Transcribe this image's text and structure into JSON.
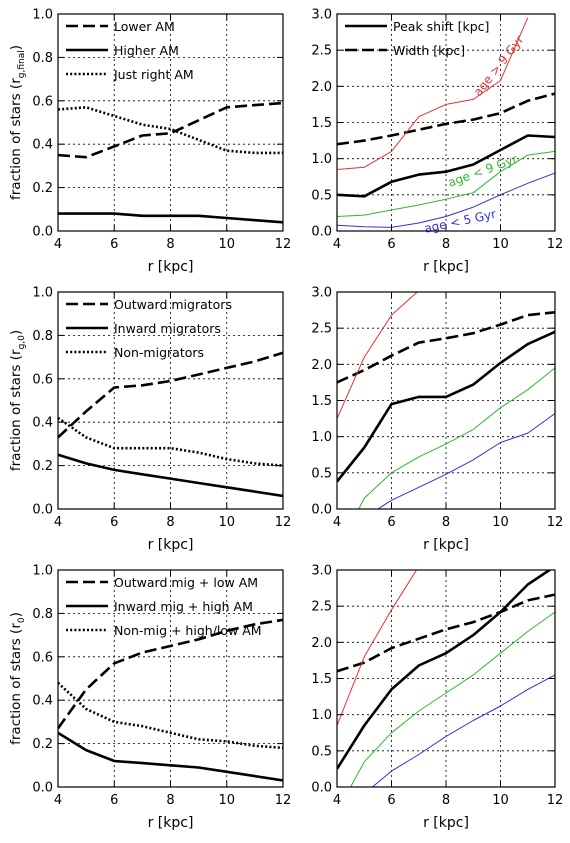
{
  "chart_data": [
    {
      "type": "line",
      "xlabel": "r [kpc]",
      "ylabel": "fraction of stars (r_g,final)",
      "ylabel_parts": [
        "fraction of stars (r",
        "g,final",
        ")"
      ],
      "xlim": [
        4,
        12
      ],
      "ylim": [
        0,
        1
      ],
      "xticks": [
        "4",
        "6",
        "8",
        "10",
        "12"
      ],
      "yticks": [
        "0.0",
        "0.2",
        "0.4",
        "0.6",
        "0.8",
        "1.0"
      ],
      "grid": true,
      "legend_position": "top-left",
      "series": [
        {
          "name": "Lower AM",
          "style": "dashed",
          "color": "#000000",
          "x": [
            4,
            5,
            6,
            7,
            8,
            9,
            10,
            11,
            12
          ],
          "y": [
            0.35,
            0.34,
            0.39,
            0.44,
            0.45,
            0.51,
            0.57,
            0.58,
            0.59
          ]
        },
        {
          "name": "Higher AM",
          "style": "solid",
          "color": "#000000",
          "x": [
            4,
            5,
            6,
            7,
            8,
            9,
            10,
            11,
            12
          ],
          "y": [
            0.08,
            0.08,
            0.08,
            0.07,
            0.07,
            0.07,
            0.06,
            0.05,
            0.04
          ]
        },
        {
          "name": "Just right AM",
          "style": "dotted",
          "color": "#000000",
          "x": [
            4,
            5,
            6,
            7,
            8,
            9,
            10,
            11,
            12
          ],
          "y": [
            0.56,
            0.57,
            0.53,
            0.49,
            0.47,
            0.42,
            0.37,
            0.36,
            0.36
          ]
        }
      ]
    },
    {
      "type": "line",
      "xlabel": "r [kpc]",
      "ylabel": "",
      "xlim": [
        4,
        12
      ],
      "ylim": [
        0,
        3
      ],
      "xticks": [
        "4",
        "6",
        "8",
        "10",
        "12"
      ],
      "yticks": [
        "0.0",
        "0.5",
        "1.0",
        "1.5",
        "2.0",
        "2.5",
        "3.0"
      ],
      "grid": true,
      "legend_position": "top-left",
      "series": [
        {
          "name": "Peak shift [kpc]",
          "style": "solid",
          "color": "#000000",
          "x": [
            4,
            5,
            6,
            7,
            8,
            9,
            10,
            11,
            12
          ],
          "y": [
            0.5,
            0.48,
            0.68,
            0.78,
            0.82,
            0.92,
            1.12,
            1.32,
            1.3
          ]
        },
        {
          "name": "Width [kpc]",
          "style": "dashed",
          "color": "#000000",
          "x": [
            4,
            5,
            6,
            7,
            8,
            9,
            10,
            11,
            12
          ],
          "y": [
            1.2,
            1.25,
            1.32,
            1.4,
            1.48,
            1.54,
            1.63,
            1.8,
            1.9
          ]
        },
        {
          "name": "age > 9 Gyr",
          "style": "thin",
          "color": "#e83030",
          "x": [
            4,
            5,
            6,
            7,
            8,
            9,
            10,
            11
          ],
          "y": [
            0.85,
            0.88,
            1.1,
            1.58,
            1.75,
            1.82,
            2.08,
            2.95
          ]
        },
        {
          "name": "age < 9 Gyr",
          "style": "thin",
          "color": "#30b830",
          "x": [
            4,
            5,
            6,
            7,
            8,
            9,
            10,
            11,
            12
          ],
          "y": [
            0.2,
            0.22,
            0.29,
            0.36,
            0.44,
            0.53,
            0.82,
            1.05,
            1.1
          ]
        },
        {
          "name": "age < 5 Gyr",
          "style": "thin",
          "color": "#3030e0",
          "x": [
            4,
            5,
            6,
            7,
            8,
            9,
            10,
            11,
            12
          ],
          "y": [
            0.08,
            0.06,
            0.05,
            0.11,
            0.2,
            0.33,
            0.5,
            0.66,
            0.8
          ]
        }
      ],
      "annotations": [
        {
          "text": "age > 9 Gyr",
          "color": "#e83030",
          "x": 10.05,
          "y": 2.25,
          "angle": -52
        },
        {
          "text": "age < 9 Gyr",
          "color": "#30b830",
          "x": 9.4,
          "y": 0.78,
          "angle": -20
        },
        {
          "text": "age < 5 Gyr",
          "color": "#3030e0",
          "x": 8.55,
          "y": 0.08,
          "angle": -12
        }
      ]
    },
    {
      "type": "line",
      "xlabel": "r [kpc]",
      "ylabel": "fraction of stars (r_g,0)",
      "ylabel_parts": [
        "fraction of stars (r",
        "g,0",
        ")"
      ],
      "xlim": [
        4,
        12
      ],
      "ylim": [
        0,
        1
      ],
      "xticks": [
        "4",
        "6",
        "8",
        "10",
        "12"
      ],
      "yticks": [
        "0.0",
        "0.2",
        "0.4",
        "0.6",
        "0.8",
        "1.0"
      ],
      "grid": true,
      "legend_position": "top-left",
      "series": [
        {
          "name": "Outward migrators",
          "style": "dashed",
          "color": "#000000",
          "x": [
            4,
            5,
            6,
            7,
            8,
            9,
            10,
            11,
            12
          ],
          "y": [
            0.33,
            0.45,
            0.56,
            0.57,
            0.59,
            0.62,
            0.65,
            0.68,
            0.72
          ]
        },
        {
          "name": "Inward migrators",
          "style": "solid",
          "color": "#000000",
          "x": [
            4,
            5,
            6,
            7,
            8,
            9,
            10,
            11,
            12
          ],
          "y": [
            0.25,
            0.21,
            0.18,
            0.16,
            0.14,
            0.12,
            0.1,
            0.08,
            0.06
          ]
        },
        {
          "name": "Non-migrators",
          "style": "dotted",
          "color": "#000000",
          "x": [
            4,
            5,
            6,
            7,
            8,
            9,
            10,
            11,
            12
          ],
          "y": [
            0.42,
            0.33,
            0.28,
            0.28,
            0.28,
            0.26,
            0.23,
            0.21,
            0.2
          ]
        }
      ]
    },
    {
      "type": "line",
      "xlabel": "r [kpc]",
      "ylabel": "",
      "xlim": [
        4,
        12
      ],
      "ylim": [
        0,
        3
      ],
      "xticks": [
        "4",
        "6",
        "8",
        "10",
        "12"
      ],
      "yticks": [
        "0.0",
        "0.5",
        "1.0",
        "1.5",
        "2.0",
        "2.5",
        "3.0"
      ],
      "grid": true,
      "series": [
        {
          "name": "",
          "style": "solid",
          "color": "#000000",
          "x": [
            4,
            5,
            6,
            7,
            8,
            9,
            10,
            11,
            12
          ],
          "y": [
            0.38,
            0.85,
            1.45,
            1.55,
            1.55,
            1.72,
            2.02,
            2.28,
            2.45
          ]
        },
        {
          "name": "",
          "style": "dashed",
          "color": "#000000",
          "x": [
            4,
            5,
            6,
            7,
            8,
            9,
            10,
            11,
            12
          ],
          "y": [
            1.75,
            1.92,
            2.12,
            2.3,
            2.36,
            2.43,
            2.55,
            2.68,
            2.72
          ]
        },
        {
          "name": "",
          "style": "thin",
          "color": "#e83030",
          "x": [
            4,
            5,
            6,
            7
          ],
          "y": [
            1.25,
            2.1,
            2.68,
            3.02
          ]
        },
        {
          "name": "",
          "style": "thin",
          "color": "#30b830",
          "x": [
            4.8,
            5,
            6,
            7,
            8,
            9,
            10,
            11,
            12
          ],
          "y": [
            0.0,
            0.15,
            0.5,
            0.72,
            0.9,
            1.1,
            1.4,
            1.65,
            1.95
          ]
        },
        {
          "name": "",
          "style": "thin",
          "color": "#3030e0",
          "x": [
            5.5,
            6,
            7,
            8,
            9,
            10,
            11,
            12
          ],
          "y": [
            0.0,
            0.12,
            0.3,
            0.48,
            0.68,
            0.92,
            1.05,
            1.32
          ]
        }
      ]
    },
    {
      "type": "line",
      "xlabel": "r [kpc]",
      "ylabel": "fraction of stars (r_0)",
      "ylabel_parts": [
        "fraction of stars (r",
        "0",
        ")"
      ],
      "xlim": [
        4,
        12
      ],
      "ylim": [
        0,
        1
      ],
      "xticks": [
        "4",
        "6",
        "8",
        "10",
        "12"
      ],
      "yticks": [
        "0.0",
        "0.2",
        "0.4",
        "0.6",
        "0.8",
        "1.0"
      ],
      "grid": true,
      "legend_position": "top-left",
      "series": [
        {
          "name": "Outward mig + low AM",
          "style": "dashed",
          "color": "#000000",
          "x": [
            4,
            5,
            6,
            7,
            8,
            9,
            10,
            11,
            12
          ],
          "y": [
            0.27,
            0.45,
            0.57,
            0.62,
            0.65,
            0.68,
            0.72,
            0.75,
            0.77
          ]
        },
        {
          "name": "Inward mig + high AM",
          "style": "solid",
          "color": "#000000",
          "x": [
            4,
            5,
            6,
            7,
            8,
            9,
            10,
            11,
            12
          ],
          "y": [
            0.25,
            0.17,
            0.12,
            0.11,
            0.1,
            0.09,
            0.07,
            0.05,
            0.03
          ]
        },
        {
          "name": "Non-mig + high/low AM",
          "style": "dotted",
          "color": "#000000",
          "x": [
            4,
            5,
            6,
            7,
            8,
            9,
            10,
            11,
            12
          ],
          "y": [
            0.48,
            0.36,
            0.3,
            0.28,
            0.25,
            0.22,
            0.21,
            0.19,
            0.18
          ]
        }
      ]
    },
    {
      "type": "line",
      "xlabel": "r [kpc]",
      "ylabel": "",
      "xlim": [
        4,
        12
      ],
      "ylim": [
        0,
        3
      ],
      "xticks": [
        "4",
        "6",
        "8",
        "10",
        "12"
      ],
      "yticks": [
        "0.0",
        "0.5",
        "1.0",
        "1.5",
        "2.0",
        "2.5",
        "3.0"
      ],
      "grid": true,
      "series": [
        {
          "name": "",
          "style": "solid",
          "color": "#000000",
          "x": [
            4,
            5,
            6,
            7,
            8,
            9,
            10,
            11,
            12
          ],
          "y": [
            0.25,
            0.85,
            1.35,
            1.68,
            1.85,
            2.1,
            2.42,
            2.8,
            3.05
          ]
        },
        {
          "name": "",
          "style": "dashed",
          "color": "#000000",
          "x": [
            4,
            5,
            6,
            7,
            8,
            9,
            10,
            11,
            12
          ],
          "y": [
            1.6,
            1.72,
            1.92,
            2.05,
            2.18,
            2.28,
            2.42,
            2.58,
            2.66
          ]
        },
        {
          "name": "",
          "style": "thin",
          "color": "#e83030",
          "x": [
            4,
            5,
            6,
            7
          ],
          "y": [
            0.85,
            1.8,
            2.45,
            3.05
          ]
        },
        {
          "name": "",
          "style": "thin",
          "color": "#30b830",
          "x": [
            4.5,
            5,
            6,
            7,
            8,
            9,
            10,
            11,
            12
          ],
          "y": [
            0.0,
            0.35,
            0.75,
            1.05,
            1.3,
            1.55,
            1.85,
            2.15,
            2.42
          ]
        },
        {
          "name": "",
          "style": "thin",
          "color": "#3030e0",
          "x": [
            5.3,
            6,
            7,
            8,
            9,
            10,
            11,
            12
          ],
          "y": [
            0.0,
            0.22,
            0.45,
            0.7,
            0.92,
            1.12,
            1.35,
            1.55
          ]
        }
      ]
    }
  ]
}
